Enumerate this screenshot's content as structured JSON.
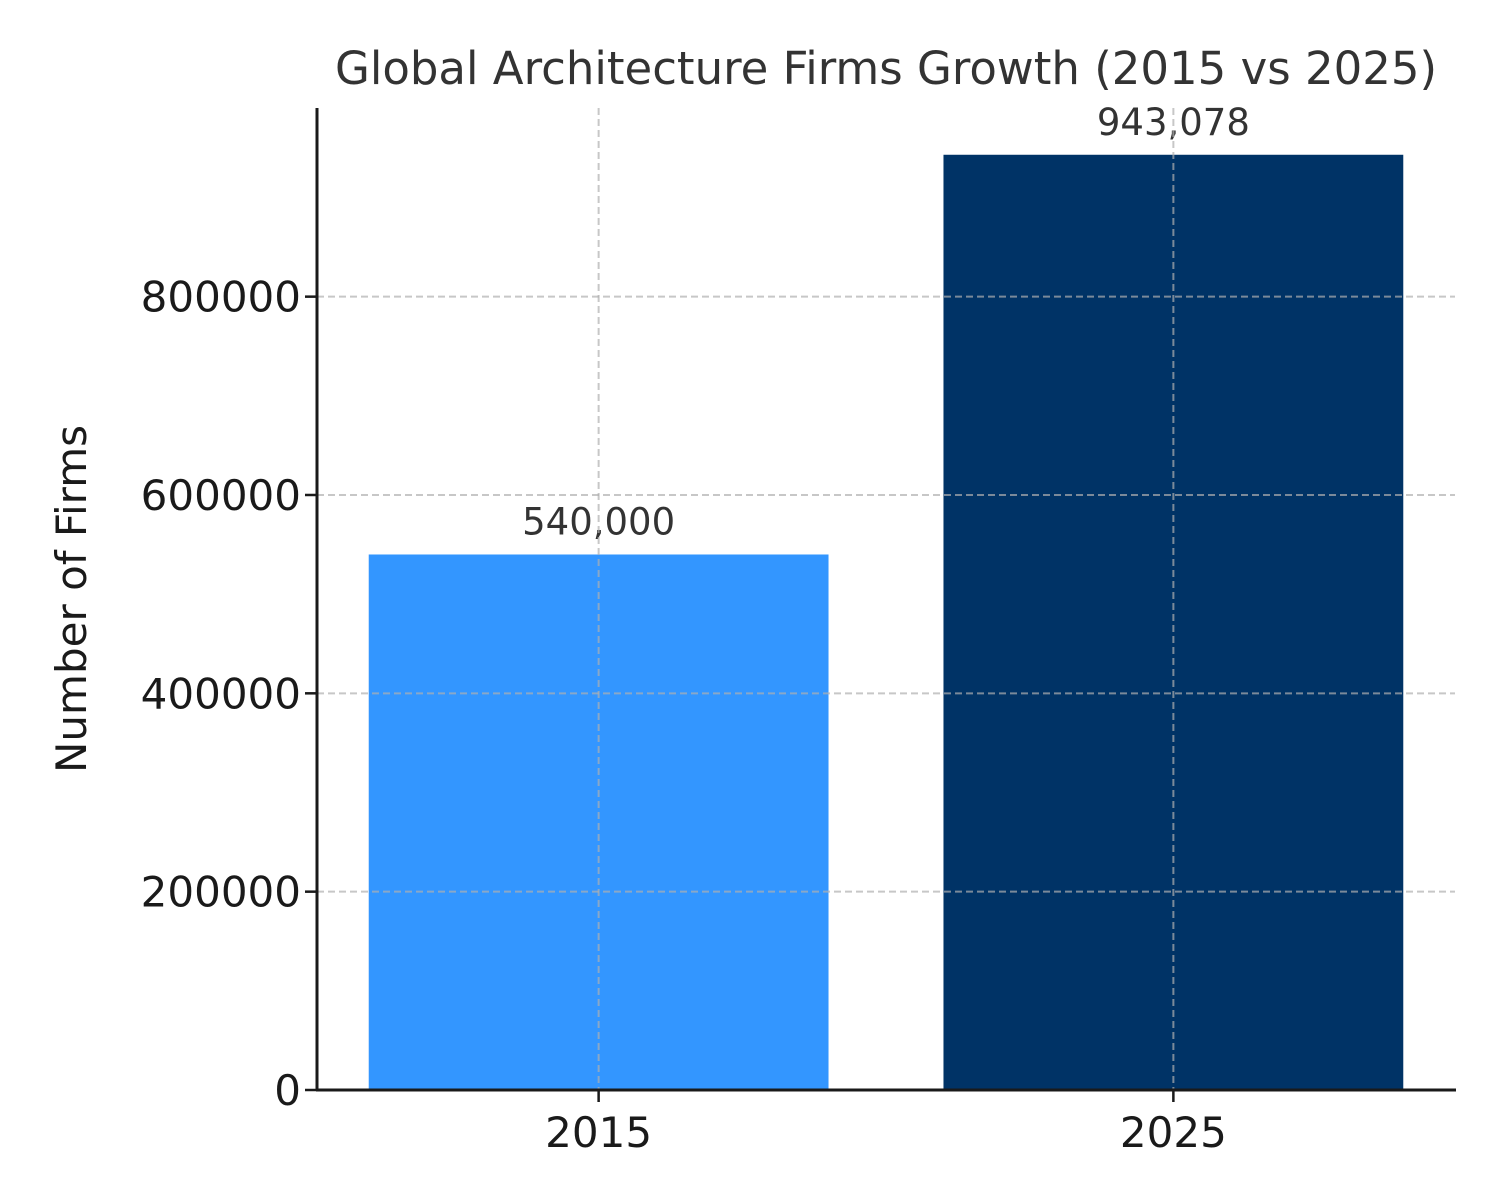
{
  "chart_data": {
    "type": "bar",
    "title": "Global Architecture Firms Growth (2015 vs 2025)",
    "xlabel": "",
    "ylabel": "Number of Firms",
    "categories": [
      "2015",
      "2025"
    ],
    "values": [
      540000,
      943078
    ],
    "data_labels": [
      "540,000",
      "943,078"
    ],
    "colors": [
      "#3396FF",
      "#003366"
    ],
    "ylim": [
      0,
      990232
    ],
    "yticks": [
      0,
      200000,
      400000,
      600000,
      800000
    ],
    "ytick_labels": [
      "0",
      "200000",
      "400000",
      "600000",
      "800000"
    ],
    "grid": true
  }
}
